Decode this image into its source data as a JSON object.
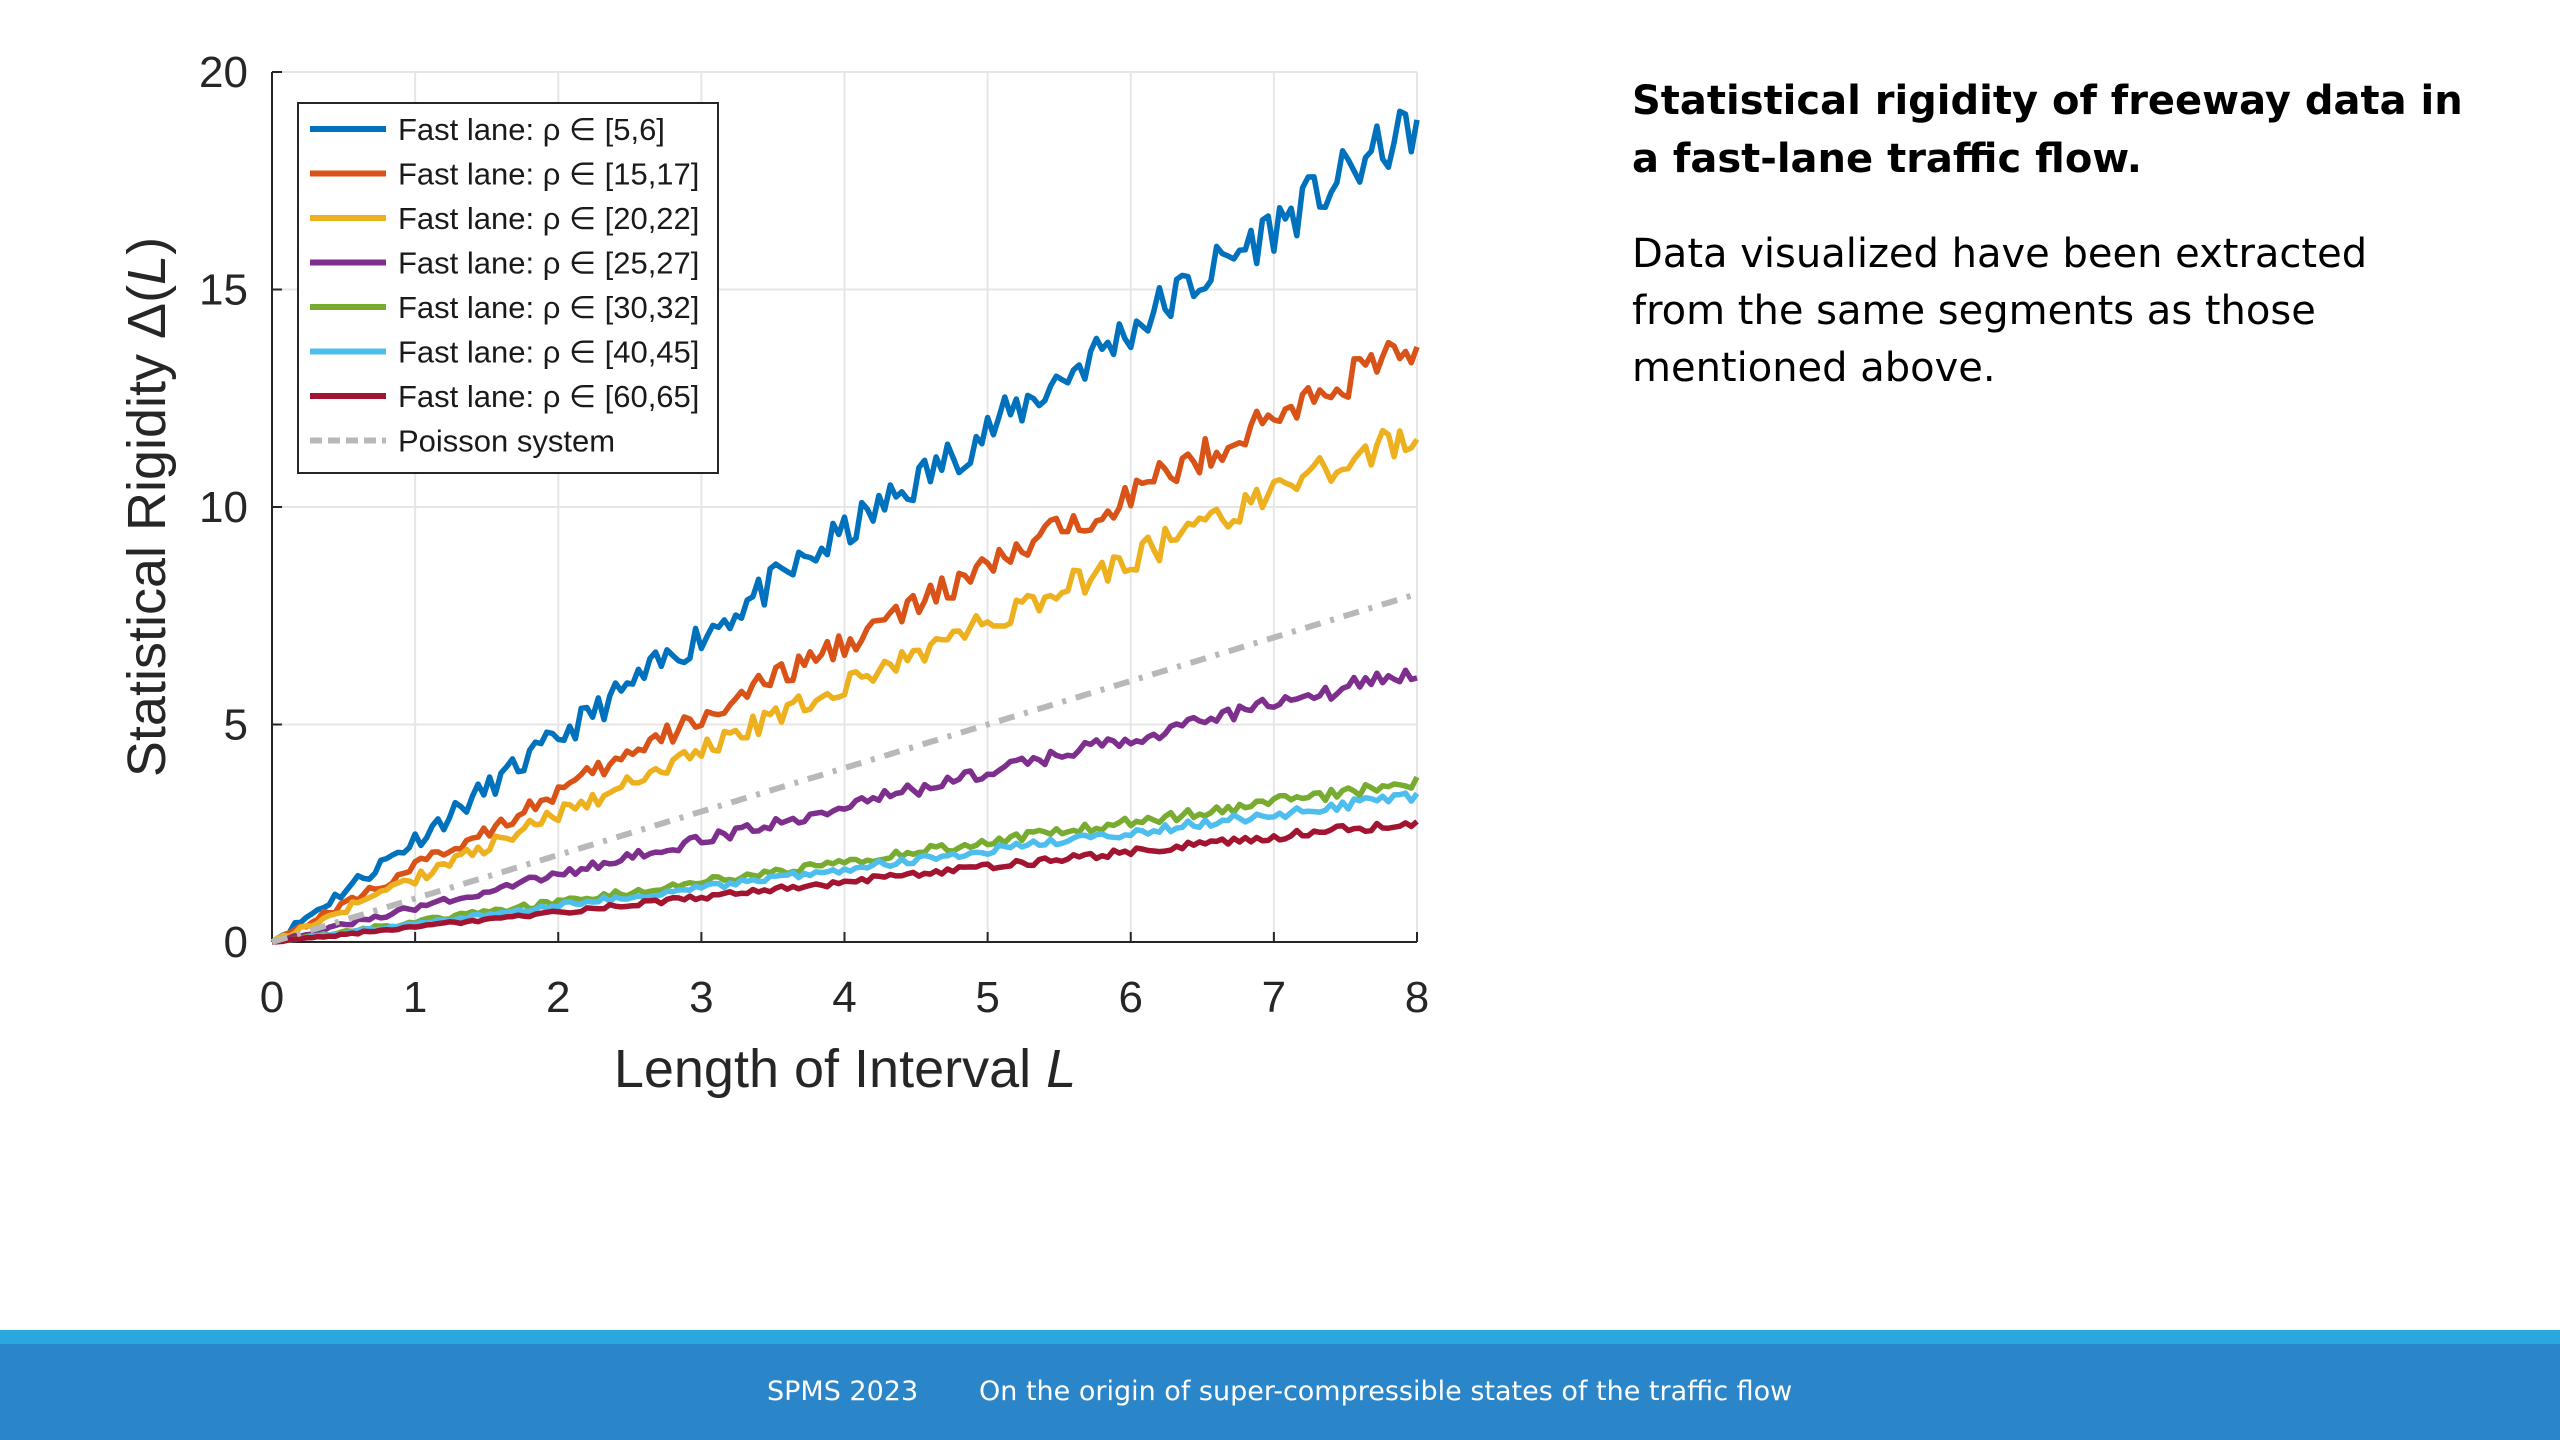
{
  "chart_data": {
    "type": "line",
    "xlabel_text": "Length of Interval ",
    "xlabel_var": "L",
    "ylabel_text": "Statistical Rigidity Δ(",
    "ylabel_var": "L",
    "ylabel_close": ")",
    "xlim": [
      0,
      8
    ],
    "ylim": [
      0,
      20
    ],
    "xticks": [
      0,
      1,
      2,
      3,
      4,
      5,
      6,
      7,
      8
    ],
    "yticks": [
      0,
      5,
      10,
      15,
      20
    ],
    "grid": true,
    "legend_position": "top-left",
    "series": [
      {
        "name": "Fast lane: ρ ∈ [5,6]",
        "color": "#0072bd",
        "slope": 2.35,
        "noise": 0.32
      },
      {
        "name": "Fast lane: ρ ∈ [15,17]",
        "color": "#d95319",
        "slope": 1.72,
        "noise": 0.22
      },
      {
        "name": "Fast lane: ρ ∈ [20,22]",
        "color": "#edb120",
        "slope": 1.47,
        "noise": 0.2
      },
      {
        "name": "Fast lane: ρ ∈ [25,27]",
        "color": "#7e2f8e",
        "slope": 0.78,
        "noise": 0.1
      },
      {
        "name": "Fast lane: ρ ∈ [30,32]",
        "color": "#77ac30",
        "slope": 0.46,
        "noise": 0.07
      },
      {
        "name": "Fast lane: ρ ∈ [40,45]",
        "color": "#4dbeee",
        "slope": 0.42,
        "noise": 0.06
      },
      {
        "name": "Fast lane: ρ ∈ [60,65]",
        "color": "#a2142f",
        "slope": 0.345,
        "noise": 0.05
      },
      {
        "name": "Poisson system",
        "color": "#b8b8b8",
        "slope": 1.0,
        "noise": 0,
        "dashed": true
      }
    ]
  },
  "side": {
    "title": "Statistical rigidity of freeway data in a fast-lane traffic flow.",
    "body": "Data visualized have been extracted from the same segments as those mentioned above."
  },
  "footer": {
    "left": "SPMS 2023",
    "right": "On the origin of super-compressible states of the traffic flow"
  }
}
